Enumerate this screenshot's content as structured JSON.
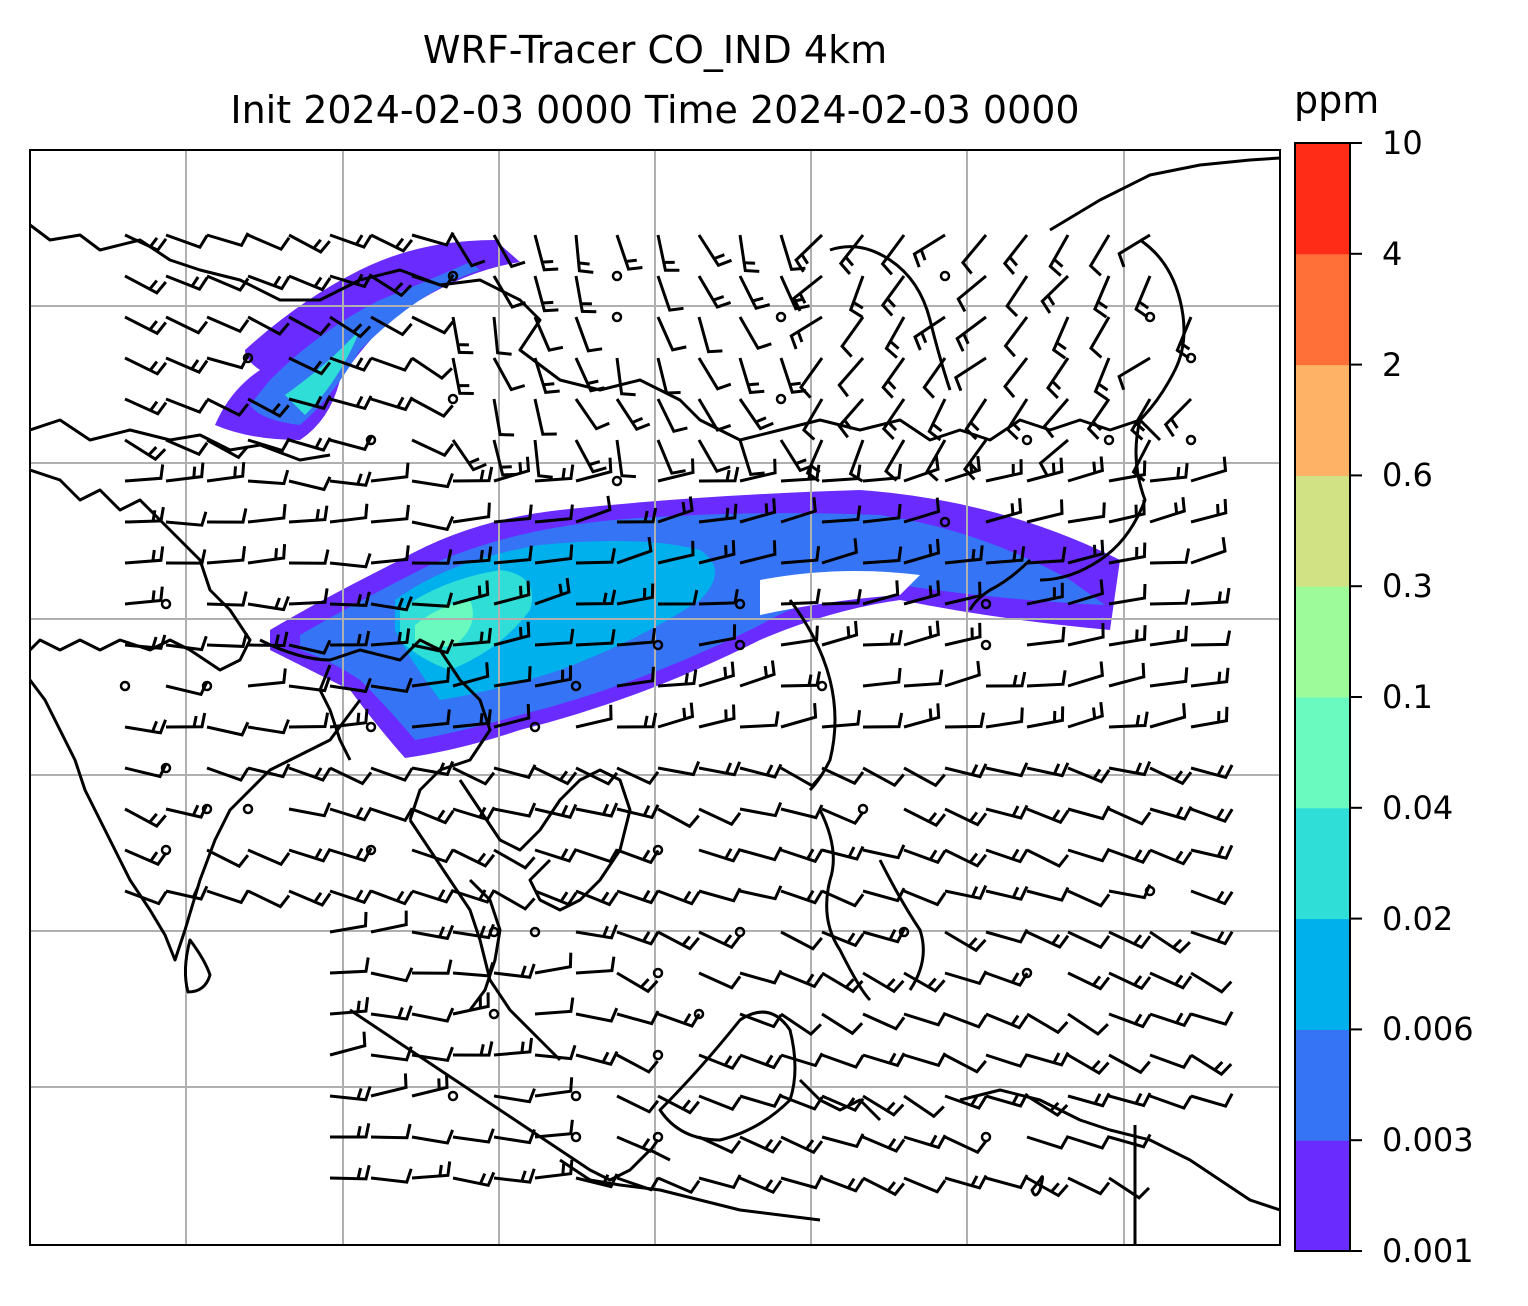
{
  "header": {
    "title_line1": "WRF-Tracer CO_IND 4km",
    "title_line2": "Init 2024-02-03 0000 Time 2024-02-03 0000"
  },
  "colorbar": {
    "unit": "ppm",
    "levels": [
      "0.001",
      "0.003",
      "0.006",
      "0.02",
      "0.04",
      "0.1",
      "0.3",
      "0.6",
      "2",
      "4",
      "10"
    ],
    "colors": [
      "#6a2bff",
      "#3575f5",
      "#00b0ec",
      "#2fdfd7",
      "#6af9be",
      "#9efb9a",
      "#d1e285",
      "#fdb266",
      "#ff7039",
      "#ff2c18"
    ]
  },
  "map": {
    "gridlines": true,
    "coastline_color": "#000000",
    "grid_color": "#b0b0b0"
  },
  "chart_data": {
    "type": "heatmap",
    "title": "WRF-Tracer CO_IND 4km\nInit 2024-02-03 0000 Time 2024-02-03 0000",
    "variable": "CO_IND",
    "unit": "ppm",
    "scale": "log-binned",
    "levels": [
      0.001,
      0.003,
      0.006,
      0.02,
      0.04,
      0.1,
      0.3,
      0.6,
      2,
      4,
      10
    ],
    "overlay": "wind barbs",
    "legend": "colorbar right"
  }
}
